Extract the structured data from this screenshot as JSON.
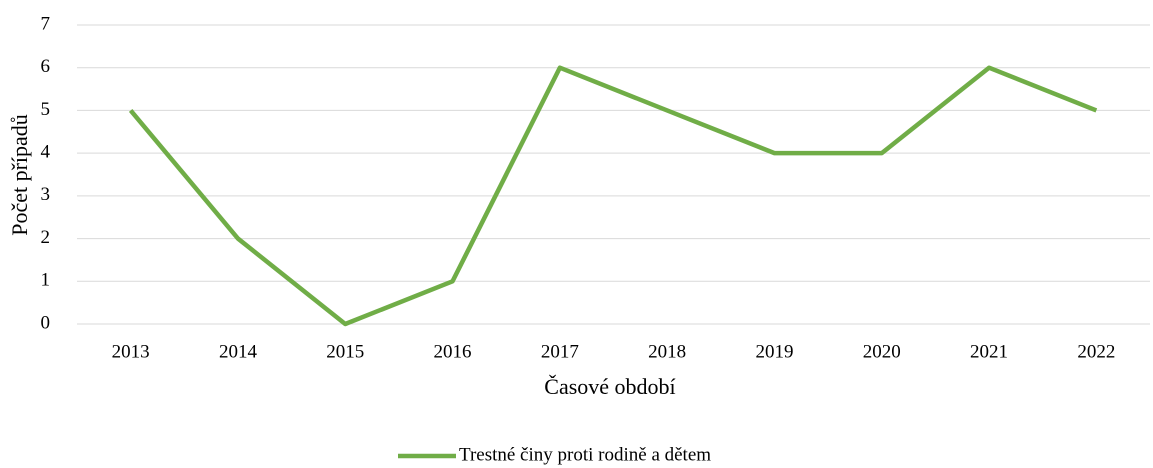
{
  "chart_data": {
    "type": "line",
    "categories": [
      "2013",
      "2014",
      "2015",
      "2016",
      "2017",
      "2018",
      "2019",
      "2020",
      "2021",
      "2022"
    ],
    "series": [
      {
        "name": "Trestné činy proti rodině a dětem",
        "color": "#70ad47",
        "values": [
          5,
          2,
          0,
          1,
          6,
          5,
          4,
          4,
          6,
          5
        ]
      }
    ],
    "xlabel": "Časové období",
    "ylabel": "Počet případů",
    "ylim": [
      0,
      7
    ],
    "yticks": [
      0,
      1,
      2,
      3,
      4,
      5,
      6,
      7
    ],
    "grid": true,
    "legend": "bottom"
  }
}
